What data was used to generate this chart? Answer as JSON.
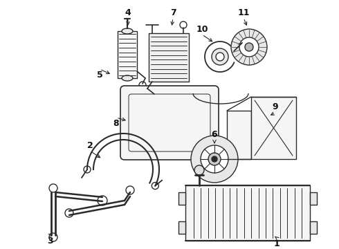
{
  "bg_color": "#ffffff",
  "line_color": "#2a2a2a",
  "label_color": "#111111",
  "label_fontsize": 9,
  "lw": 1.0,
  "fig_w": 4.9,
  "fig_h": 3.6,
  "dpi": 100
}
